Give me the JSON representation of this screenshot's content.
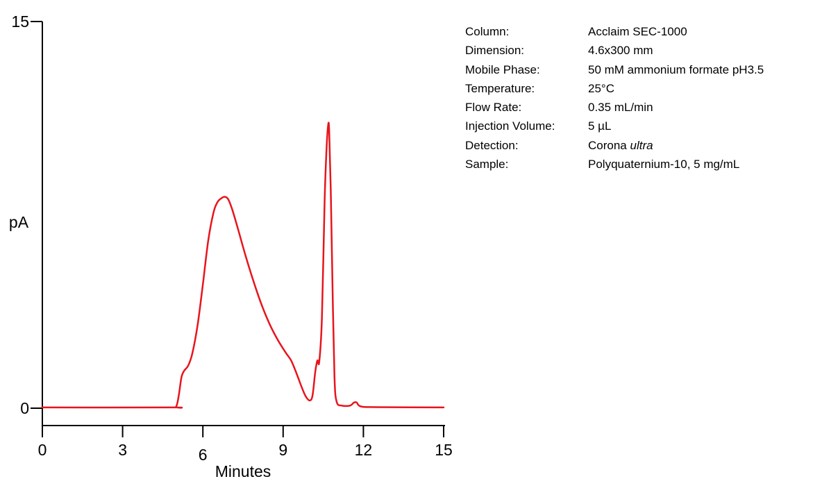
{
  "chart_data": {
    "type": "line",
    "xlabel": "Minutes",
    "ylabel": "pA",
    "xlim": [
      0,
      15
    ],
    "ylim": [
      0,
      15
    ],
    "x_ticks": [
      "0",
      "3",
      "6",
      "9",
      "12",
      "15"
    ],
    "y_ticks": [
      "0",
      "15"
    ],
    "grid": false,
    "series": [
      {
        "color": "#e8141c",
        "points": [
          [
            0.0,
            0.03
          ],
          [
            4.8,
            0.03
          ],
          [
            5.0,
            0.06
          ],
          [
            5.1,
            0.5
          ],
          [
            5.2,
            1.2
          ],
          [
            5.3,
            1.45
          ],
          [
            5.45,
            1.65
          ],
          [
            5.6,
            2.1
          ],
          [
            5.8,
            3.2
          ],
          [
            6.0,
            4.8
          ],
          [
            6.2,
            6.5
          ],
          [
            6.4,
            7.6
          ],
          [
            6.55,
            8.0
          ],
          [
            6.7,
            8.15
          ],
          [
            6.82,
            8.2
          ],
          [
            6.95,
            8.1
          ],
          [
            7.1,
            7.7
          ],
          [
            7.3,
            7.0
          ],
          [
            7.6,
            5.9
          ],
          [
            7.9,
            4.9
          ],
          [
            8.2,
            4.0
          ],
          [
            8.5,
            3.25
          ],
          [
            8.8,
            2.65
          ],
          [
            9.1,
            2.15
          ],
          [
            9.3,
            1.85
          ],
          [
            9.5,
            1.35
          ],
          [
            9.7,
            0.8
          ],
          [
            9.85,
            0.45
          ],
          [
            10.0,
            0.3
          ],
          [
            10.1,
            0.5
          ],
          [
            10.2,
            1.4
          ],
          [
            10.28,
            1.85
          ],
          [
            10.35,
            1.8
          ],
          [
            10.45,
            3.5
          ],
          [
            10.55,
            8.0
          ],
          [
            10.62,
            10.0
          ],
          [
            10.68,
            10.95
          ],
          [
            10.72,
            10.8
          ],
          [
            10.78,
            8.5
          ],
          [
            10.85,
            4.5
          ],
          [
            10.92,
            1.2
          ],
          [
            11.0,
            0.25
          ],
          [
            11.2,
            0.1
          ],
          [
            11.5,
            0.1
          ],
          [
            11.65,
            0.22
          ],
          [
            11.75,
            0.22
          ],
          [
            11.9,
            0.07
          ],
          [
            12.5,
            0.04
          ],
          [
            15.0,
            0.03
          ]
        ]
      }
    ]
  },
  "conditions": [
    {
      "key": "Column:",
      "value": "Acclaim SEC-1000"
    },
    {
      "key": "Dimension:",
      "value": "4.6x300 mm"
    },
    {
      "key": "Mobile Phase:",
      "value": "50 mM ammonium formate pH3.5"
    },
    {
      "key": "Temperature:",
      "value": "25°C"
    },
    {
      "key": "Flow Rate:",
      "value": "0.35 mL/min"
    },
    {
      "key": "Injection Volume:",
      "value": "5 µL"
    },
    {
      "key": "Detection:",
      "value": "Corona",
      "value_italic": "ultra"
    },
    {
      "key": "Sample:",
      "value": "Polyquaternium-10, 5 mg/mL"
    }
  ]
}
